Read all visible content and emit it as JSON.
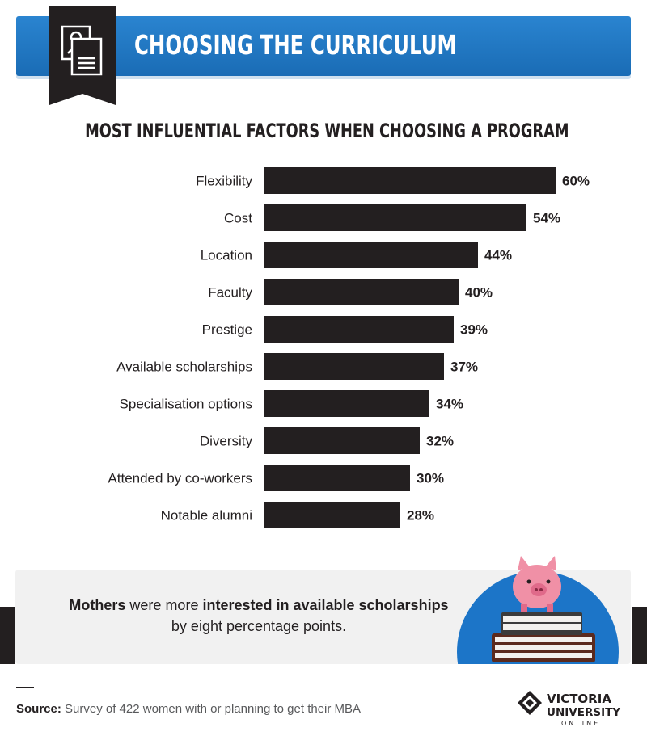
{
  "header": {
    "title": "CHOOSING THE CURRICULUM",
    "icon": "profile-document-icon",
    "color": "#1f78c6"
  },
  "chart_data": {
    "type": "bar",
    "orientation": "horizontal",
    "title": "MOST INFLUENTIAL FACTORS WHEN CHOOSING A PROGRAM",
    "categories": [
      "Flexibility",
      "Cost",
      "Location",
      "Faculty",
      "Prestige",
      "Available scholarships",
      "Specialisation options",
      "Diversity",
      "Attended by co-workers",
      "Notable alumni"
    ],
    "values": [
      60,
      54,
      44,
      40,
      39,
      37,
      34,
      32,
      30,
      28
    ],
    "value_labels": [
      "60%",
      "54%",
      "44%",
      "40%",
      "39%",
      "37%",
      "34%",
      "32%",
      "30%",
      "28%"
    ],
    "unit": "%",
    "bar_color": "#231f20",
    "grid": false,
    "legend": "none"
  },
  "callout": {
    "part1": "Mothers",
    "part2": " were more ",
    "part3": "interested in available scholarships",
    "part4": "by eight percentage points.",
    "illustration": "piggy-bank-on-books-icon"
  },
  "footer": {
    "source_label": "Source:",
    "source_text": " Survey of 422 women with or planning to get their MBA",
    "logo_line1": "VICTORIA",
    "logo_line2": "UNIVERSITY",
    "logo_line3": "ONLINE"
  }
}
